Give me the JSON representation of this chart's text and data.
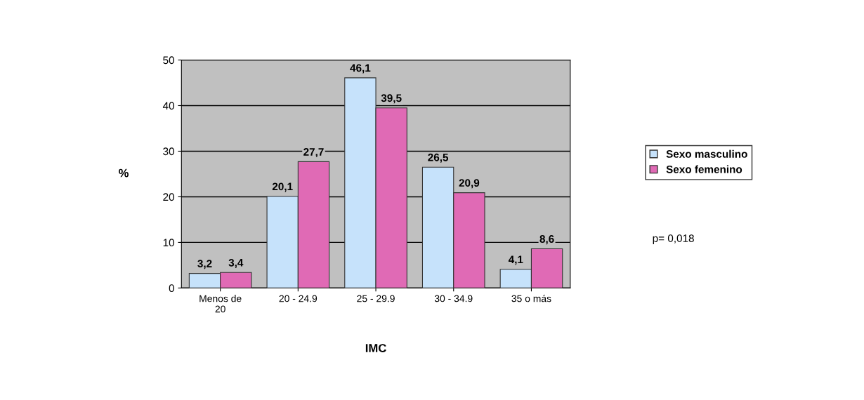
{
  "chart_data": {
    "type": "bar",
    "xlabel": "IMC",
    "ylabel": "%",
    "categories": [
      "Menos de\n20",
      "20 - 24.9",
      "25 - 29.9",
      "30 - 34.9",
      "35 o más"
    ],
    "series": [
      {
        "name": "Sexo masculino",
        "color": "#c6e2fb",
        "values": [
          3.2,
          20.1,
          46.1,
          26.5,
          4.1
        ],
        "value_labels": [
          "3,2",
          "20,1",
          "46,1",
          "26,5",
          "4,1"
        ]
      },
      {
        "name": "Sexo femenino",
        "color": "#e06ab5",
        "values": [
          3.4,
          27.7,
          39.5,
          20.9,
          8.6
        ],
        "value_labels": [
          "3,4",
          "27,7",
          "39,5",
          "20,9",
          "8,6"
        ]
      }
    ],
    "ylim": [
      0,
      50
    ],
    "yticks": [
      0,
      10,
      20,
      30,
      40,
      50
    ],
    "grid": "y",
    "legend": "right",
    "annotations": [
      "p= 0,018"
    ]
  }
}
